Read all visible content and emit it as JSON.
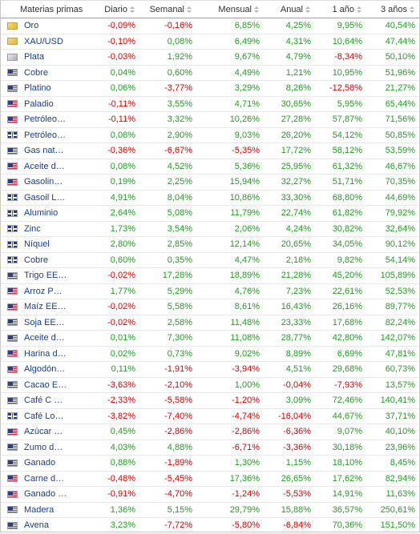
{
  "header": {
    "name": "Materias primas",
    "daily": "Diario",
    "weekly": "Semanal",
    "monthly": "Mensual",
    "annual": "Anual",
    "one_year": "1 año",
    "three_years": "3 años"
  },
  "colors": {
    "positive": "#21a121",
    "negative": "#e50000",
    "link": "#1a3f92"
  },
  "rows": [
    {
      "flag": "gold",
      "name": "Oro",
      "d": "-0,09%",
      "s": "-0,16%",
      "m": "6,85%",
      "a": "4,25%",
      "y": "9,95%",
      "t": "40,54%"
    },
    {
      "flag": "gold",
      "name": "XAU/USD",
      "d": "-0,10%",
      "s": "0,08%",
      "m": "6,49%",
      "a": "4,31%",
      "y": "10,64%",
      "t": "47,44%"
    },
    {
      "flag": "silver",
      "name": "Plata",
      "d": "-0,03%",
      "s": "1,92%",
      "m": "9,67%",
      "a": "4,79%",
      "y": "-8,34%",
      "t": "50,10%"
    },
    {
      "flag": "us",
      "name": "Cobre",
      "d": "0,04%",
      "s": "0,60%",
      "m": "4,49%",
      "a": "1,21%",
      "y": "10,95%",
      "t": "51,96%"
    },
    {
      "flag": "us",
      "name": "Platino",
      "d": "0,06%",
      "s": "-3,77%",
      "m": "3,29%",
      "a": "8,26%",
      "y": "-12,58%",
      "t": "21,27%"
    },
    {
      "flag": "us",
      "name": "Paladio",
      "d": "-0,11%",
      "s": "3,55%",
      "m": "4,71%",
      "a": "30,65%",
      "y": "5,95%",
      "t": "65,44%"
    },
    {
      "flag": "us",
      "name": "Petróleo…",
      "d": "-0,11%",
      "s": "3,32%",
      "m": "10,26%",
      "a": "27,28%",
      "y": "57,87%",
      "t": "71,56%"
    },
    {
      "flag": "uk",
      "name": "Petróleo…",
      "d": "0,08%",
      "s": "2,90%",
      "m": "9,03%",
      "a": "26,20%",
      "y": "54,12%",
      "t": "50,85%"
    },
    {
      "flag": "us",
      "name": "Gas nat…",
      "d": "-0,36%",
      "s": "-6,67%",
      "m": "-5,35%",
      "a": "17,72%",
      "y": "58,12%",
      "t": "53,59%"
    },
    {
      "flag": "us",
      "name": "Aceite d…",
      "d": "0,08%",
      "s": "4,52%",
      "m": "5,36%",
      "a": "25,95%",
      "y": "61,32%",
      "t": "46,67%"
    },
    {
      "flag": "us",
      "name": "Gasolin…",
      "d": "0,19%",
      "s": "2,25%",
      "m": "15,94%",
      "a": "32,27%",
      "y": "51,71%",
      "t": "70,35%"
    },
    {
      "flag": "uk",
      "name": "Gasoil L…",
      "d": "4,91%",
      "s": "8,04%",
      "m": "10,86%",
      "a": "33,30%",
      "y": "68,80%",
      "t": "44,69%"
    },
    {
      "flag": "uk",
      "name": "Aluminio",
      "d": "2,64%",
      "s": "5,08%",
      "m": "11,79%",
      "a": "22,74%",
      "y": "61,82%",
      "t": "79,92%"
    },
    {
      "flag": "uk",
      "name": "Zinc",
      "d": "1,73%",
      "s": "3,54%",
      "m": "2,06%",
      "a": "4,24%",
      "y": "30,82%",
      "t": "32,64%"
    },
    {
      "flag": "uk",
      "name": "Níquel",
      "d": "2,80%",
      "s": "2,85%",
      "m": "12,14%",
      "a": "20,65%",
      "y": "34,05%",
      "t": "90,12%"
    },
    {
      "flag": "uk",
      "name": "Cobre",
      "d": "0,60%",
      "s": "0,35%",
      "m": "4,47%",
      "a": "2,18%",
      "y": "9,82%",
      "t": "54,14%"
    },
    {
      "flag": "us",
      "name": "Trigo EE…",
      "d": "-0,02%",
      "s": "17,28%",
      "m": "18,89%",
      "a": "21,28%",
      "y": "45,20%",
      "t": "105,89%"
    },
    {
      "flag": "us",
      "name": "Arroz P…",
      "d": "1,77%",
      "s": "5,29%",
      "m": "4,76%",
      "a": "7,23%",
      "y": "22,61%",
      "t": "52,53%"
    },
    {
      "flag": "us",
      "name": "Maíz EE…",
      "d": "-0,02%",
      "s": "5,58%",
      "m": "8,61%",
      "a": "16,43%",
      "y": "26,16%",
      "t": "89,77%"
    },
    {
      "flag": "us",
      "name": "Soja EE…",
      "d": "-0,02%",
      "s": "2,58%",
      "m": "11,48%",
      "a": "23,33%",
      "y": "17,68%",
      "t": "82,24%"
    },
    {
      "flag": "us",
      "name": "Aceite d…",
      "d": "0,01%",
      "s": "7,30%",
      "m": "11,08%",
      "a": "28,77%",
      "y": "42,80%",
      "t": "142,07%"
    },
    {
      "flag": "us",
      "name": "Harina d…",
      "d": "0,02%",
      "s": "0,73%",
      "m": "9,02%",
      "a": "8,89%",
      "y": "6,69%",
      "t": "47,81%"
    },
    {
      "flag": "us",
      "name": "Algodón…",
      "d": "0,11%",
      "s": "-1,91%",
      "m": "-3,94%",
      "a": "4,51%",
      "y": "29,68%",
      "t": "60,73%"
    },
    {
      "flag": "us",
      "name": "Cacao E…",
      "d": "-3,63%",
      "s": "-2,10%",
      "m": "1,00%",
      "a": "-0,04%",
      "y": "-7,93%",
      "t": "13,57%"
    },
    {
      "flag": "us",
      "name": "Café C …",
      "d": "-2,33%",
      "s": "-5,58%",
      "m": "-1,20%",
      "a": "3,09%",
      "y": "72,46%",
      "t": "140,41%"
    },
    {
      "flag": "uk",
      "name": "Café Lo…",
      "d": "-3,82%",
      "s": "-7,40%",
      "m": "-4,74%",
      "a": "-16,04%",
      "y": "44,67%",
      "t": "37,71%"
    },
    {
      "flag": "us",
      "name": "Azúcar …",
      "d": "0,45%",
      "s": "-2,86%",
      "m": "-2,86%",
      "a": "-6,36%",
      "y": "9,07%",
      "t": "40,10%"
    },
    {
      "flag": "us",
      "name": "Zumo d…",
      "d": "4,03%",
      "s": "4,88%",
      "m": "-6,71%",
      "a": "-3,36%",
      "y": "30,18%",
      "t": "23,96%"
    },
    {
      "flag": "us",
      "name": "Ganado",
      "d": "0,88%",
      "s": "-1,89%",
      "m": "1,30%",
      "a": "1,15%",
      "y": "18,10%",
      "t": "8,45%"
    },
    {
      "flag": "us",
      "name": "Carne d…",
      "d": "-0,48%",
      "s": "-5,45%",
      "m": "17,36%",
      "a": "26,65%",
      "y": "17,62%",
      "t": "82,94%"
    },
    {
      "flag": "us",
      "name": "Ganado …",
      "d": "-0,91%",
      "s": "-4,70%",
      "m": "-1,24%",
      "a": "-5,53%",
      "y": "14,91%",
      "t": "11,63%"
    },
    {
      "flag": "us",
      "name": "Madera",
      "d": "1,36%",
      "s": "5,15%",
      "m": "29,79%",
      "a": "15,88%",
      "y": "36,57%",
      "t": "250,61%"
    },
    {
      "flag": "us",
      "name": "Avena",
      "d": "3,23%",
      "s": "-7,72%",
      "m": "-5,80%",
      "a": "-6,84%",
      "y": "70,36%",
      "t": "151,50%"
    }
  ]
}
